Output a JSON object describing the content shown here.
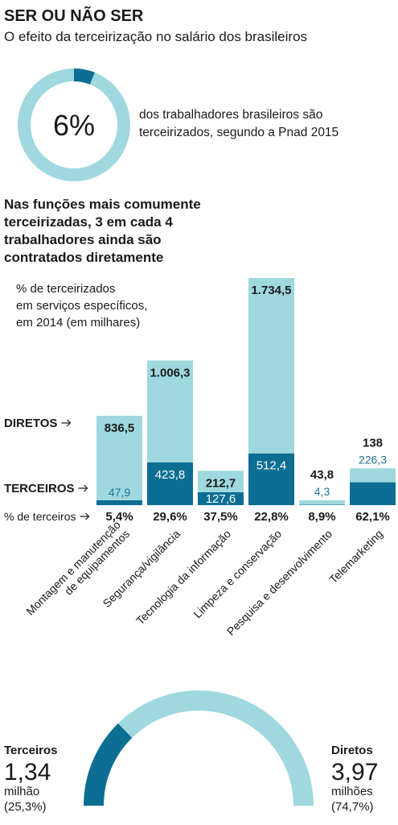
{
  "title": "SER OU NÃO SER",
  "subtitle": "O efeito da terceirização no salário dos brasileiros",
  "chart_data": [
    {
      "type": "donut",
      "value": 6,
      "value_label": "6%",
      "color": "#0d6e94",
      "track_color": "#9fd8df",
      "caption": [
        "dos trabalhadores brasileiros são",
        "terceirizados, segundo a Pnad 2015"
      ]
    },
    {
      "type": "stacked_bar",
      "title": [
        "Nas funções mais comumente",
        "terceirizadas, 3 em cada 4",
        "trabalhadores ainda são",
        "contratados diretamente"
      ],
      "subtitle": [
        "% de terceirizados",
        "em serviços específicos,",
        "em 2014 (em milhares)"
      ],
      "categories": [
        [
          "Montagem e manutenção",
          "de equipamentos"
        ],
        [
          "Segurança/vigilância"
        ],
        [
          "Tecnologia da informação"
        ],
        [
          "Limpeza e conservação"
        ],
        [
          "Pesquisa e desenvolvimento"
        ],
        [
          "Telemarketing"
        ]
      ],
      "series": [
        {
          "name": "TERCEIROS",
          "color": "#0d6e94",
          "values": [
            47.9,
            423.8,
            127.6,
            512.4,
            4.3,
            226.3
          ],
          "value_labels": [
            "47,9",
            "423,8",
            "127,6",
            "512,4",
            "4,3",
            "226,3"
          ]
        },
        {
          "name": "DIRETOS",
          "color": "#9fd8df",
          "values": [
            836.5,
            1006.3,
            212.7,
            1734.5,
            43.8,
            138
          ],
          "value_labels": [
            "836,5",
            "1.006,3",
            "212,7",
            "1.734,5",
            "43,8",
            "138"
          ]
        }
      ],
      "share": {
        "name": "% de terceiros",
        "values": [
          5.4,
          29.6,
          37.5,
          22.8,
          8.9,
          62.1
        ],
        "value_labels": [
          "5,4%",
          "29,6%",
          "37,5%",
          "22,8%",
          "8,9%",
          "62,1%"
        ]
      }
    },
    {
      "type": "half_donut",
      "series": [
        {
          "name": "Terceiros",
          "color": "#0d6e94",
          "value": 1.34,
          "value_label": "1,34",
          "unit": "milhão",
          "share": 25.3,
          "share_label": "(25,3%)"
        },
        {
          "name": "Diretos",
          "color": "#9fd8df",
          "value": 3.97,
          "value_label": "3,97",
          "unit": "milhões",
          "share": 74.7,
          "share_label": "(74,7%)"
        }
      ]
    }
  ]
}
